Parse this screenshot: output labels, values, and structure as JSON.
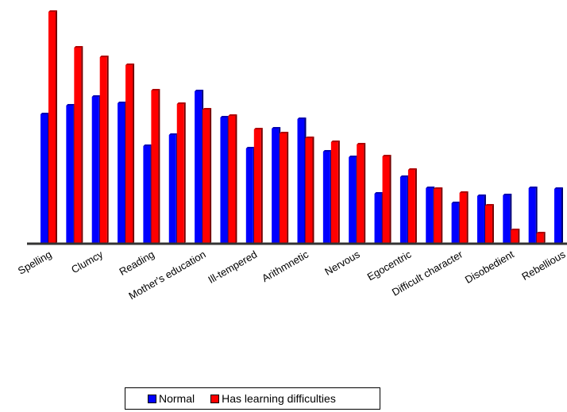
{
  "chart_data": {
    "type": "bar",
    "title": "",
    "xlabel": "",
    "ylabel": "",
    "ylim": [
      0,
      295
    ],
    "grid": false,
    "legend_position": "bottom",
    "categories": [
      "Spelling",
      "",
      "Clumcy",
      "",
      "Reading",
      "",
      "Mother's education",
      "",
      "Ill-tempered",
      "",
      "Arithmnetic",
      "",
      "Nervous",
      "",
      "Egocentric",
      "",
      "Difficult character",
      "",
      "Disobedient",
      "",
      "Rebellious"
    ],
    "series": [
      {
        "name": "Normal",
        "color": "#0000ff",
        "values": [
          163,
          174,
          185,
          177,
          123,
          137,
          192,
          159,
          120,
          145,
          157,
          116,
          109,
          63,
          84,
          70,
          51,
          60,
          61,
          70,
          69
        ]
      },
      {
        "name": "Has learning difficulties",
        "color": "#ff0000",
        "values": [
          292,
          247,
          235,
          225,
          193,
          176,
          169,
          161,
          144,
          139,
          133,
          128,
          125,
          110,
          93,
          69,
          64,
          48,
          17,
          13,
          0
        ]
      }
    ]
  },
  "legend": {
    "items": [
      {
        "label": "Normal",
        "color": "#0000ff"
      },
      {
        "label": "Has learning difficulties",
        "color": "#ff0000"
      }
    ]
  }
}
